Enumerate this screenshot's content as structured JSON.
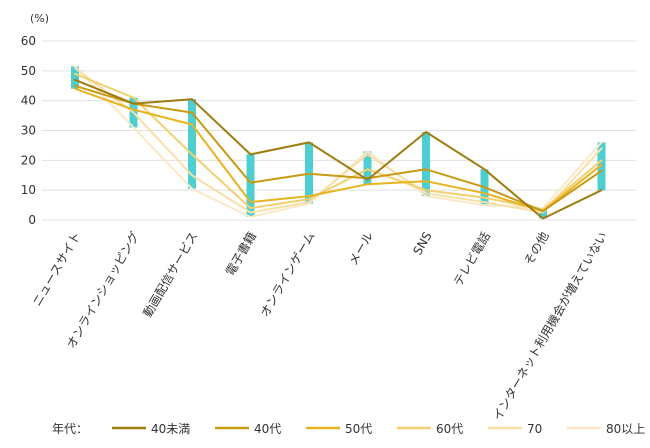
{
  "chart_data": {
    "type": "line",
    "title": "",
    "unit_label": "(%)",
    "xlabel": "",
    "ylabel": "",
    "ylim": [
      0,
      60
    ],
    "yticks": [
      0,
      10,
      20,
      30,
      40,
      50,
      60
    ],
    "grid": true,
    "categories": [
      "ニュースサイト",
      "オンラインショッピング",
      "動画配信サービス",
      "電子書籍",
      "オンラインゲーム",
      "メール",
      "SNS",
      "テレビ電話",
      "その他",
      "インターネット利用機会が増えていない"
    ],
    "legend_title": "年代：",
    "legend_position": "bottom",
    "range_bar_color": "#4dcfd2",
    "series": [
      {
        "name": "40未満",
        "color": "#a07c10",
        "values": [
          47,
          39,
          40.5,
          22,
          26,
          13.5,
          29.5,
          17,
          0.5,
          10
        ]
      },
      {
        "name": "40代",
        "color": "#c89a12",
        "values": [
          45,
          39,
          36,
          12.5,
          15.5,
          14,
          17,
          11,
          3,
          16.5
        ]
      },
      {
        "name": "50代",
        "color": "#e8b320",
        "values": [
          44,
          37,
          32,
          6,
          8,
          12,
          13,
          9,
          3,
          18.5
        ]
      },
      {
        "name": "60代",
        "color": "#f2cf70",
        "values": [
          49,
          41,
          22,
          4,
          7,
          17,
          10,
          7.5,
          3.5,
          20
        ]
      },
      {
        "name": "70",
        "color": "#f8dfa6",
        "values": [
          51,
          36,
          15,
          2.5,
          6,
          22,
          9,
          6,
          2.5,
          24
        ]
      },
      {
        "name": "80以上",
        "color": "#fbe8c8",
        "values": [
          51.5,
          31,
          10.5,
          1,
          5.5,
          23,
          8,
          5,
          4,
          26
        ]
      }
    ]
  }
}
